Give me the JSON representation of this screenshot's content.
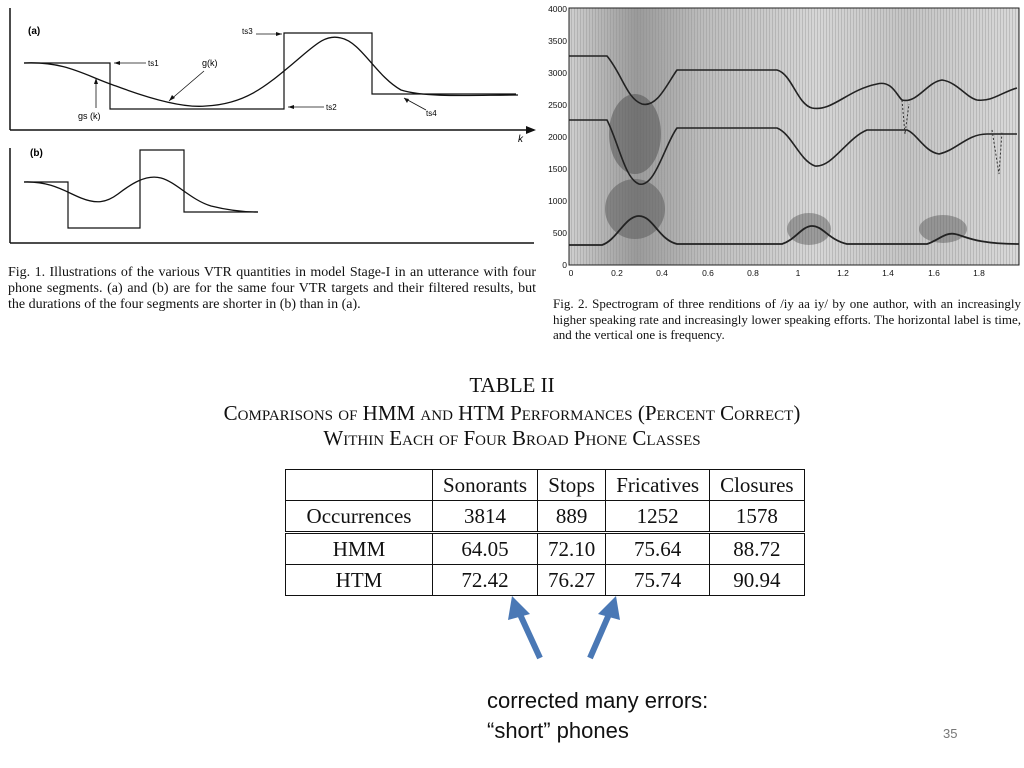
{
  "fig1": {
    "panel_a": "(a)",
    "panel_b": "(b)",
    "labels": {
      "t1": "ts1",
      "t2": "ts2",
      "t3": "ts3",
      "t4": "ts4",
      "g": "g(k)",
      "g0": "gs (k)",
      "k": "k"
    },
    "caption": "Fig. 1.   Illustrations of the various VTR quantities in model Stage-I in an utterance with four phone segments. (a) and (b) are for the same four VTR targets and their filtered results, but the durations of the four segments are shorter in (b) than in (a)."
  },
  "fig2": {
    "y_ticks": [
      "4000",
      "3500",
      "3000",
      "2500",
      "2000",
      "1500",
      "1000",
      "500",
      "0"
    ],
    "x_ticks": [
      "0",
      "0.2",
      "0.4",
      "0.6",
      "0.8",
      "1",
      "1.2",
      "1.4",
      "1.6",
      "1.8"
    ],
    "caption": "Fig. 2.   Spectrogram of three renditions of /iy aa iy/ by one author, with an increasingly higher speaking rate and increasingly lower speaking efforts. The horizontal label is time, and the vertical one is frequency."
  },
  "table": {
    "title": "TABLE  II",
    "subtitle_line1": "Comparisons of HMM and HTM Performances (Percent Correct)",
    "subtitle_line2": "Within Each of Four Broad Phone Classes",
    "headers": [
      "",
      "Sonorants",
      "Stops",
      "Fricatives",
      "Closures"
    ],
    "rows": [
      [
        "Occurrences",
        "3814",
        "889",
        "1252",
        "1578"
      ],
      [
        "HMM",
        "64.05",
        "72.10",
        "75.64",
        "88.72"
      ],
      [
        "HTM",
        "72.42",
        "76.27",
        "75.74",
        "90.94"
      ]
    ]
  },
  "note": {
    "line1": "corrected many errors:",
    "line2": "“short” phones"
  },
  "slide_number": "35",
  "colors": {
    "arrow": "#4a78b5",
    "ink": "#111111"
  }
}
